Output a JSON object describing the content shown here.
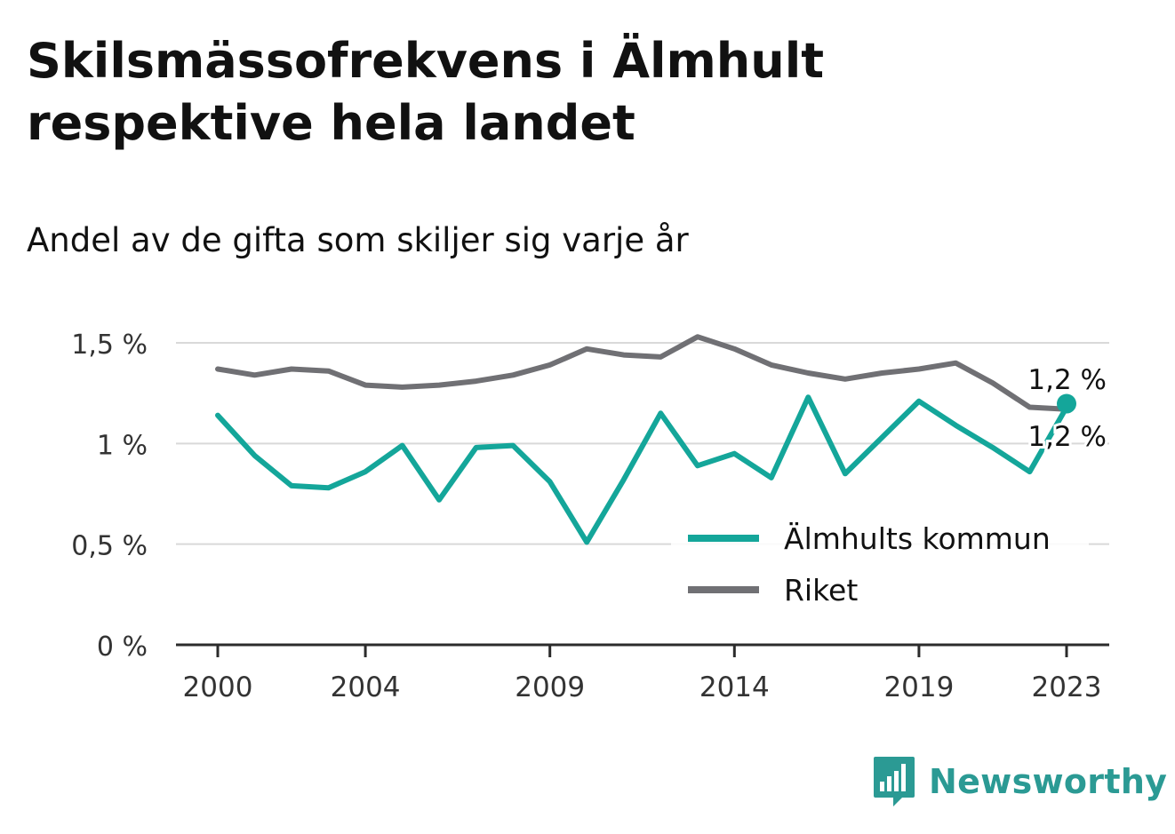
{
  "title": "Skilsmässofrekvens i Älmhult respektive hela landet",
  "subtitle": "Andel av de gifta som skiljer sig varje år",
  "brand": "Newsworthy",
  "colors": {
    "almhult": "#14a69a",
    "riket": "#707074",
    "grid": "#d9d9d9",
    "axis": "#2b2b2b",
    "brand": "#2b9a94"
  },
  "chart_data": {
    "type": "line",
    "x": [
      2000,
      2001,
      2002,
      2003,
      2004,
      2005,
      2006,
      2007,
      2008,
      2009,
      2010,
      2011,
      2012,
      2013,
      2014,
      2015,
      2016,
      2017,
      2018,
      2019,
      2020,
      2021,
      2022,
      2023
    ],
    "xticks": [
      2000,
      2004,
      2009,
      2014,
      2019,
      2023
    ],
    "xtick_labels": [
      "2000",
      "2004",
      "2009",
      "2014",
      "2019",
      "2023"
    ],
    "yticks": [
      0,
      0.5,
      1,
      1.5
    ],
    "ytick_labels": [
      "0 %",
      "0,5 %",
      "1 %",
      "1,5 %"
    ],
    "ylim": [
      0,
      1.5
    ],
    "grid": true,
    "legend": "bottom-right",
    "series": [
      {
        "name": "Älmhults kommun",
        "color": "#14a69a",
        "values": [
          1.14,
          0.94,
          0.79,
          0.78,
          0.86,
          0.99,
          0.72,
          0.98,
          0.99,
          0.81,
          0.51,
          0.82,
          1.15,
          0.89,
          0.95,
          0.83,
          1.23,
          0.85,
          1.03,
          1.21,
          1.09,
          0.98,
          0.86,
          1.18
        ],
        "end_label": "1,2 %"
      },
      {
        "name": "Riket",
        "color": "#707074",
        "values": [
          1.37,
          1.34,
          1.37,
          1.36,
          1.29,
          1.28,
          1.29,
          1.31,
          1.34,
          1.39,
          1.47,
          1.44,
          1.43,
          1.53,
          1.47,
          1.39,
          1.35,
          1.32,
          1.35,
          1.37,
          1.4,
          1.3,
          1.18,
          1.17
        ],
        "end_label": "1,2 %"
      }
    ]
  }
}
